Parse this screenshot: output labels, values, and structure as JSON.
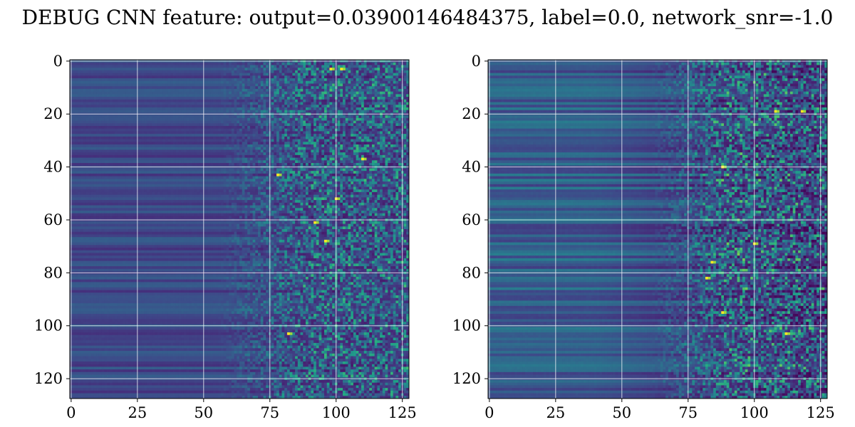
{
  "figure": {
    "title": "DEBUG CNN feature: output=0.03900146484375, label=0.0, network_snr=-1.0"
  },
  "chart_data": [
    {
      "type": "heatmap",
      "title": "",
      "xlabel": "",
      "ylabel": "",
      "x_ticks": [
        0,
        25,
        50,
        75,
        100,
        125
      ],
      "y_ticks": [
        0,
        20,
        40,
        60,
        80,
        100,
        120
      ],
      "xlim": [
        -0.5,
        127.5
      ],
      "ylim": [
        127.5,
        -0.5
      ],
      "grid": true,
      "colormap": "viridis",
      "shape": [
        128,
        128
      ],
      "description_of_pattern": "smooth horizontal banding for columns 0-50, noisy speckle increasing for columns 75-127",
      "hot_spots": [
        {
          "x": 82,
          "y": 103
        },
        {
          "x": 98,
          "y": 3
        },
        {
          "x": 102,
          "y": 3
        },
        {
          "x": 110,
          "y": 37
        },
        {
          "x": 96,
          "y": 68
        },
        {
          "x": 78,
          "y": 43
        },
        {
          "x": 100,
          "y": 52
        },
        {
          "x": 92,
          "y": 61
        }
      ]
    },
    {
      "type": "heatmap",
      "title": "",
      "xlabel": "",
      "ylabel": "",
      "x_ticks": [
        0,
        25,
        50,
        75,
        100,
        125
      ],
      "y_ticks": [
        0,
        20,
        40,
        60,
        80,
        100,
        120
      ],
      "xlim": [
        -0.5,
        127.5
      ],
      "ylim": [
        127.5,
        -0.5
      ],
      "grid": true,
      "colormap": "viridis",
      "shape": [
        128,
        128
      ],
      "description_of_pattern": "brighter horizontal banding for columns 0-70, noisy speckle for columns 75-127",
      "hot_spots": [
        {
          "x": 112,
          "y": 103
        },
        {
          "x": 88,
          "y": 40
        },
        {
          "x": 118,
          "y": 19
        },
        {
          "x": 108,
          "y": 19
        },
        {
          "x": 84,
          "y": 76
        },
        {
          "x": 100,
          "y": 69
        },
        {
          "x": 88,
          "y": 95
        },
        {
          "x": 82,
          "y": 82
        }
      ]
    }
  ]
}
